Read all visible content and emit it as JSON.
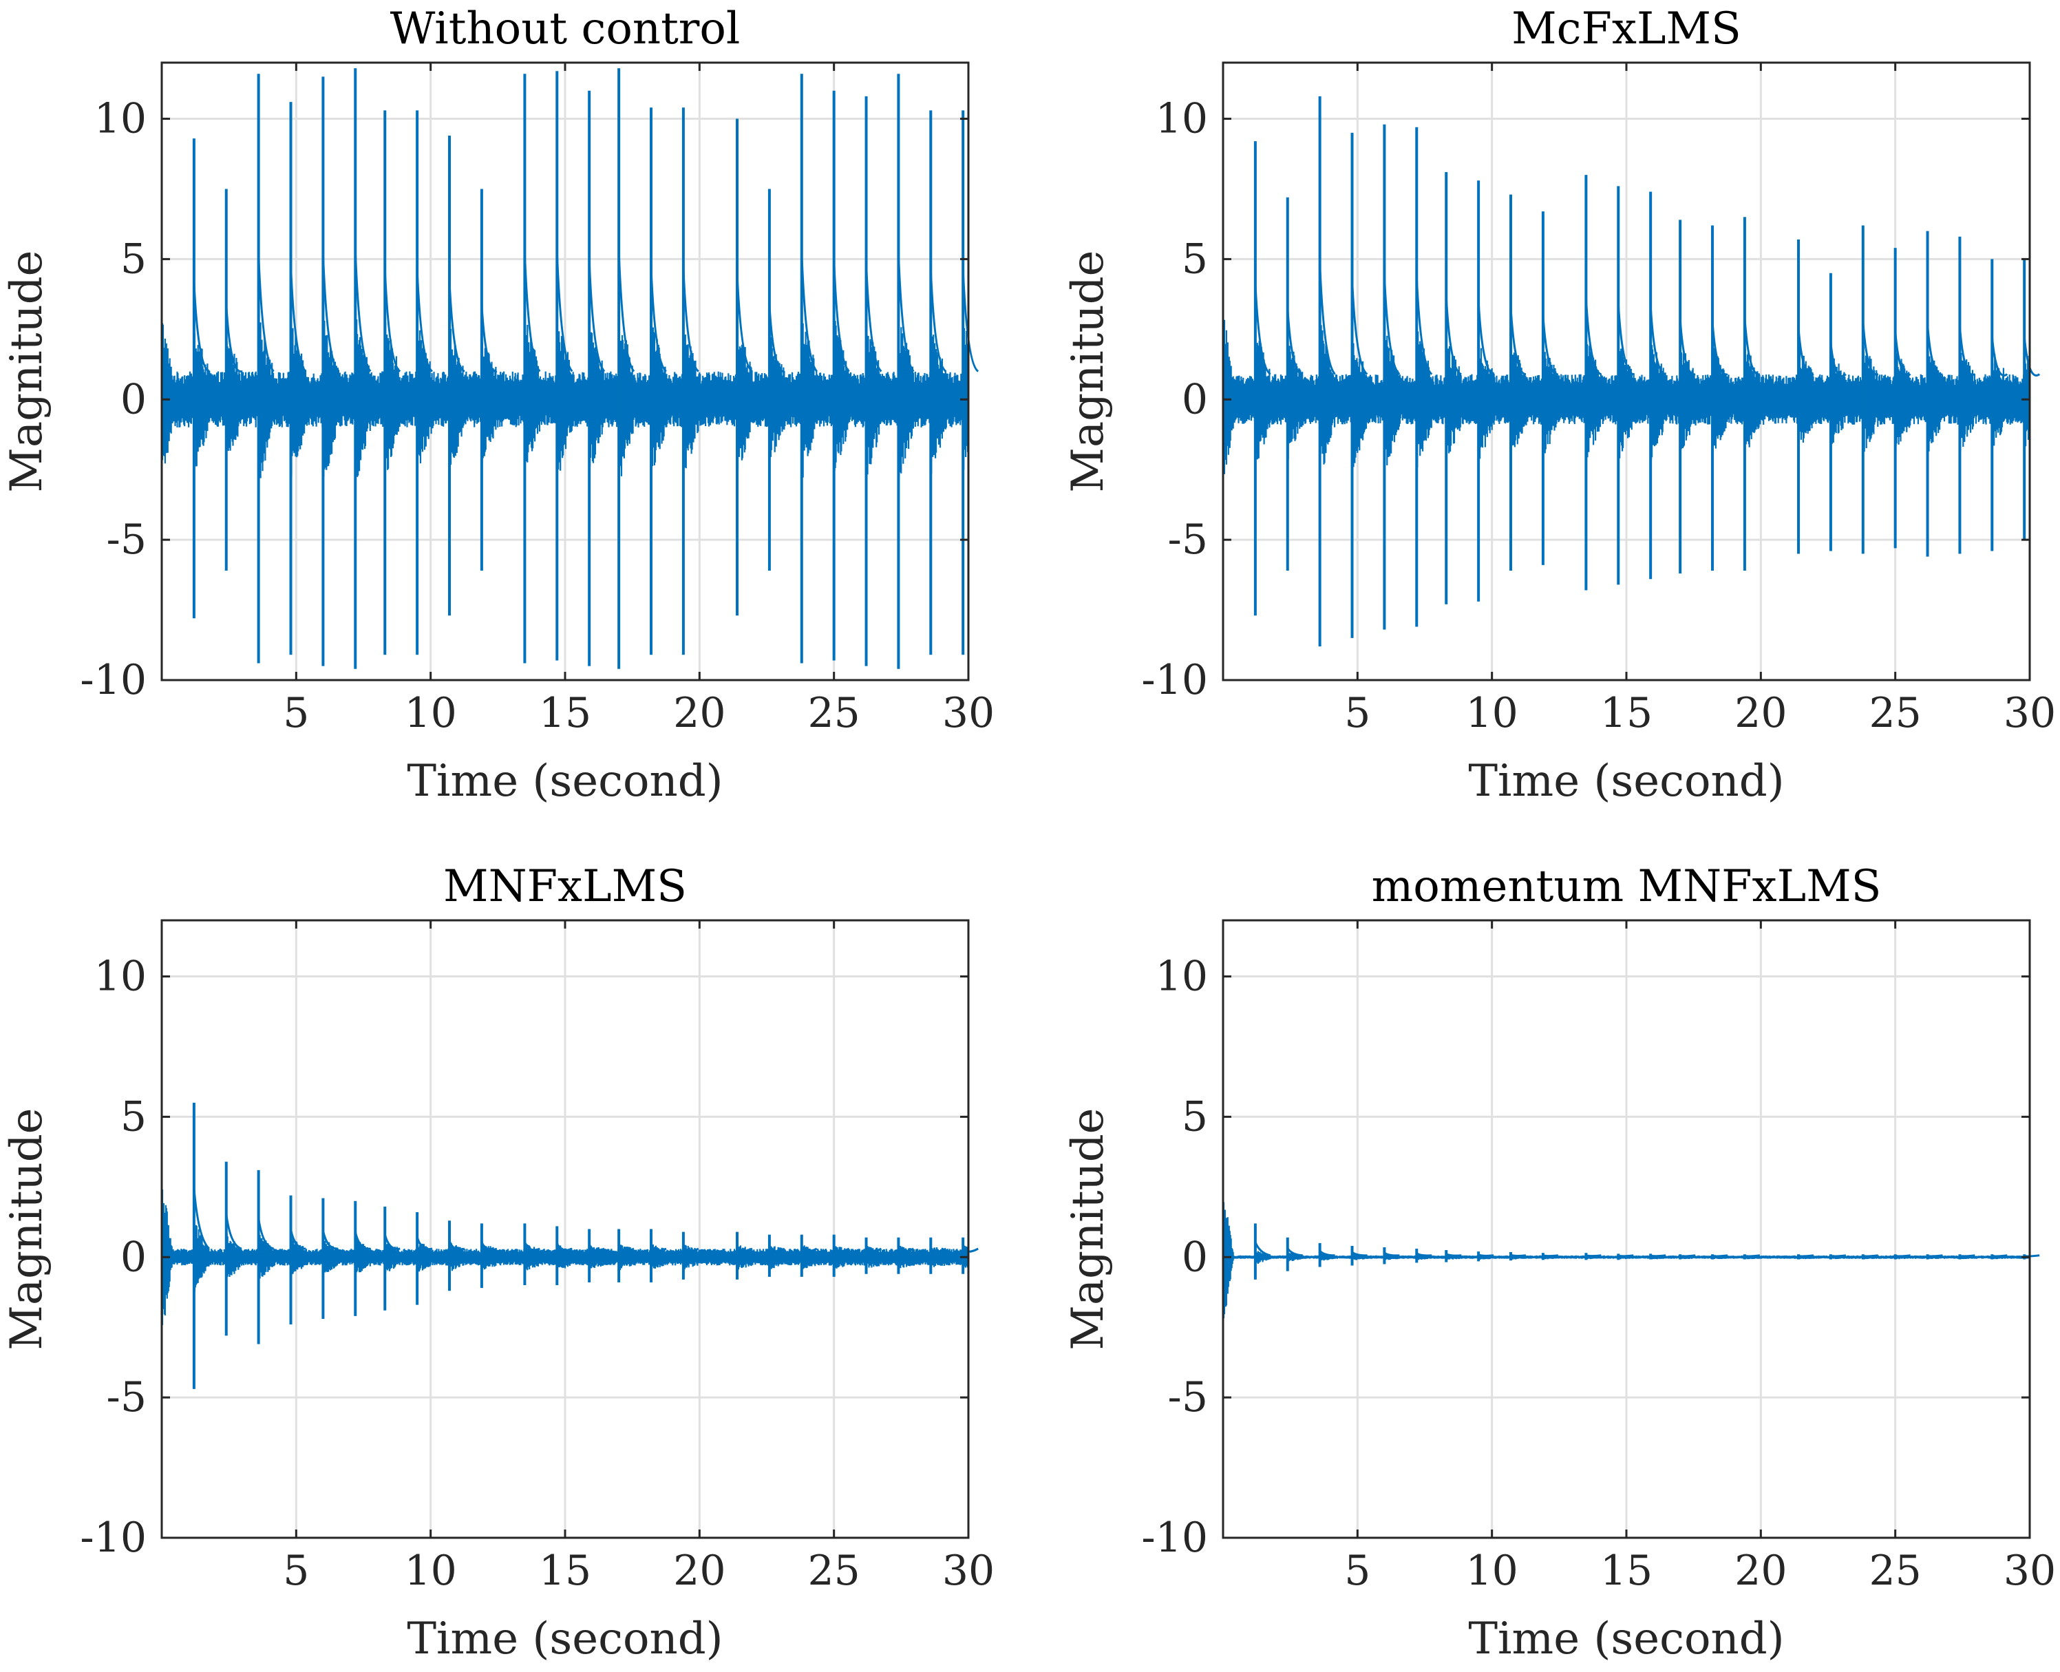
{
  "chart_data": [
    {
      "type": "line",
      "title": "Without control",
      "xlabel": "Time (second)",
      "ylabel": "Magnitude",
      "xlim": [
        0,
        30
      ],
      "ylim": [
        -10,
        12
      ],
      "xticks": [
        5,
        10,
        15,
        20,
        25,
        30
      ],
      "xtick_labels": [
        "5",
        "10",
        "15",
        "20",
        "25",
        "30"
      ],
      "yticks": [
        -10,
        -5,
        0,
        5,
        10
      ],
      "ytick_labels": [
        "-10",
        "-5",
        "0",
        "5",
        "10"
      ],
      "grid": true,
      "color": "#0072BD",
      "series": [
        {
          "noise_amplitude": 1.0,
          "start_amplitude": 3.2,
          "spikes": {
            "t": [
              1.2,
              2.4,
              3.6,
              4.8,
              6.0,
              7.2,
              8.3,
              9.5,
              10.7,
              11.9,
              13.5,
              14.7,
              15.9,
              17.0,
              18.2,
              19.4,
              21.4,
              22.6,
              23.8,
              25.0,
              26.2,
              27.4,
              28.6,
              29.8
            ],
            "peak": [
              9.3,
              7.5,
              11.6,
              10.6,
              11.5,
              11.8,
              10.3,
              10.3,
              9.4,
              7.5,
              11.6,
              11.7,
              11.0,
              11.8,
              10.4,
              10.4,
              10.0,
              7.5,
              11.6,
              11.0,
              10.8,
              11.6,
              10.3,
              10.3
            ],
            "trough": [
              -7.8,
              -6.1,
              -9.4,
              -9.1,
              -9.5,
              -9.6,
              -9.1,
              -9.1,
              -7.7,
              -6.1,
              -9.4,
              -9.3,
              -9.5,
              -9.6,
              -9.1,
              -9.1,
              -7.7,
              -6.1,
              -9.4,
              -9.3,
              -9.5,
              -9.6,
              -9.1,
              -9.1
            ]
          }
        }
      ]
    },
    {
      "type": "line",
      "title": "McFxLMS",
      "xlabel": "Time (second)",
      "ylabel": "Magnitude",
      "xlim": [
        0,
        30
      ],
      "ylim": [
        -10,
        12
      ],
      "xticks": [
        5,
        10,
        15,
        20,
        25,
        30
      ],
      "xtick_labels": [
        "5",
        "10",
        "15",
        "20",
        "25",
        "30"
      ],
      "yticks": [
        -10,
        -5,
        0,
        5,
        10
      ],
      "ytick_labels": [
        "-10",
        "-5",
        "0",
        "5",
        "10"
      ],
      "grid": true,
      "color": "#0072BD",
      "series": [
        {
          "noise_amplitude": 0.9,
          "start_amplitude": 3.2,
          "spikes": {
            "t": [
              1.2,
              2.4,
              3.6,
              4.8,
              6.0,
              7.2,
              8.3,
              9.5,
              10.7,
              11.9,
              13.5,
              14.7,
              15.9,
              17.0,
              18.2,
              19.4,
              21.4,
              22.6,
              23.8,
              25.0,
              26.2,
              27.4,
              28.6,
              29.8
            ],
            "peak": [
              9.2,
              7.2,
              10.8,
              9.5,
              9.8,
              9.7,
              8.1,
              7.8,
              7.3,
              6.7,
              8.0,
              7.6,
              7.4,
              6.4,
              6.2,
              6.5,
              5.7,
              4.5,
              6.2,
              5.4,
              6.0,
              5.8,
              5.0,
              5.0
            ],
            "trough": [
              -7.7,
              -6.1,
              -8.8,
              -8.5,
              -8.2,
              -8.1,
              -7.3,
              -7.2,
              -6.1,
              -5.9,
              -6.8,
              -6.6,
              -6.4,
              -6.2,
              -6.1,
              -6.1,
              -5.5,
              -5.4,
              -5.5,
              -5.3,
              -5.6,
              -5.5,
              -5.4,
              -5.0
            ]
          }
        }
      ]
    },
    {
      "type": "line",
      "title": "MNFxLMS",
      "xlabel": "Time (second)",
      "ylabel": "Magnitude",
      "xlim": [
        0,
        30
      ],
      "ylim": [
        -10,
        12
      ],
      "xticks": [
        5,
        10,
        15,
        20,
        25,
        30
      ],
      "xtick_labels": [
        "5",
        "10",
        "15",
        "20",
        "25",
        "30"
      ],
      "yticks": [
        -10,
        -5,
        0,
        5,
        10
      ],
      "ytick_labels": [
        "-10",
        "-5",
        "0",
        "5",
        "10"
      ],
      "grid": true,
      "color": "#0072BD",
      "series": [
        {
          "noise_amplitude": 0.3,
          "start_amplitude": 3.0,
          "spikes": {
            "t": [
              1.2,
              2.4,
              3.6,
              4.8,
              6.0,
              7.2,
              8.3,
              9.5,
              10.7,
              11.9,
              13.5,
              14.7,
              15.9,
              17.0,
              18.2,
              19.4,
              21.4,
              22.6,
              23.8,
              25.0,
              26.2,
              27.4,
              28.6,
              29.8
            ],
            "peak": [
              5.5,
              3.4,
              3.1,
              2.2,
              2.1,
              2.0,
              1.8,
              1.6,
              1.3,
              1.2,
              1.2,
              1.1,
              1.0,
              1.0,
              1.0,
              0.9,
              0.9,
              0.8,
              0.8,
              0.8,
              0.7,
              0.7,
              0.7,
              0.7
            ],
            "trough": [
              -4.7,
              -2.8,
              -3.1,
              -2.4,
              -2.2,
              -2.1,
              -1.9,
              -1.7,
              -1.2,
              -1.1,
              -1.0,
              -1.0,
              -0.9,
              -0.9,
              -0.9,
              -0.8,
              -0.8,
              -0.7,
              -0.7,
              -0.7,
              -0.6,
              -0.6,
              -0.6,
              -0.6
            ]
          }
        }
      ]
    },
    {
      "type": "line",
      "title": "momentum MNFxLMS",
      "xlabel": "Time (second)",
      "ylabel": "Magnitude",
      "xlim": [
        0,
        30
      ],
      "ylim": [
        -10,
        12
      ],
      "xticks": [
        5,
        10,
        15,
        20,
        25,
        30
      ],
      "xtick_labels": [
        "5",
        "10",
        "15",
        "20",
        "25",
        "30"
      ],
      "yticks": [
        -10,
        -5,
        0,
        5,
        10
      ],
      "ytick_labels": [
        "-10",
        "-5",
        "0",
        "5",
        "10"
      ],
      "grid": true,
      "color": "#0072BD",
      "series": [
        {
          "noise_amplitude": 0.06,
          "start_amplitude": 2.5,
          "spikes": {
            "t": [
              1.2,
              2.4,
              3.6,
              4.8,
              6.0,
              7.2,
              8.3,
              9.5,
              10.7,
              11.9,
              13.5,
              14.7,
              15.9,
              17.0,
              18.2,
              19.4,
              21.4,
              22.6,
              23.8,
              25.0,
              26.2,
              27.4,
              28.6,
              29.8
            ],
            "peak": [
              1.2,
              0.7,
              0.5,
              0.4,
              0.35,
              0.3,
              0.25,
              0.2,
              0.18,
              0.15,
              0.15,
              0.12,
              0.12,
              0.1,
              0.1,
              0.1,
              0.1,
              0.1,
              0.1,
              0.1,
              0.1,
              0.1,
              0.1,
              0.1
            ],
            "trough": [
              -0.8,
              -0.5,
              -0.35,
              -0.3,
              -0.25,
              -0.2,
              -0.18,
              -0.15,
              -0.12,
              -0.1,
              -0.1,
              -0.1,
              -0.08,
              -0.08,
              -0.08,
              -0.08,
              -0.08,
              -0.08,
              -0.08,
              -0.08,
              -0.08,
              -0.08,
              -0.08,
              -0.08
            ]
          }
        }
      ]
    }
  ]
}
